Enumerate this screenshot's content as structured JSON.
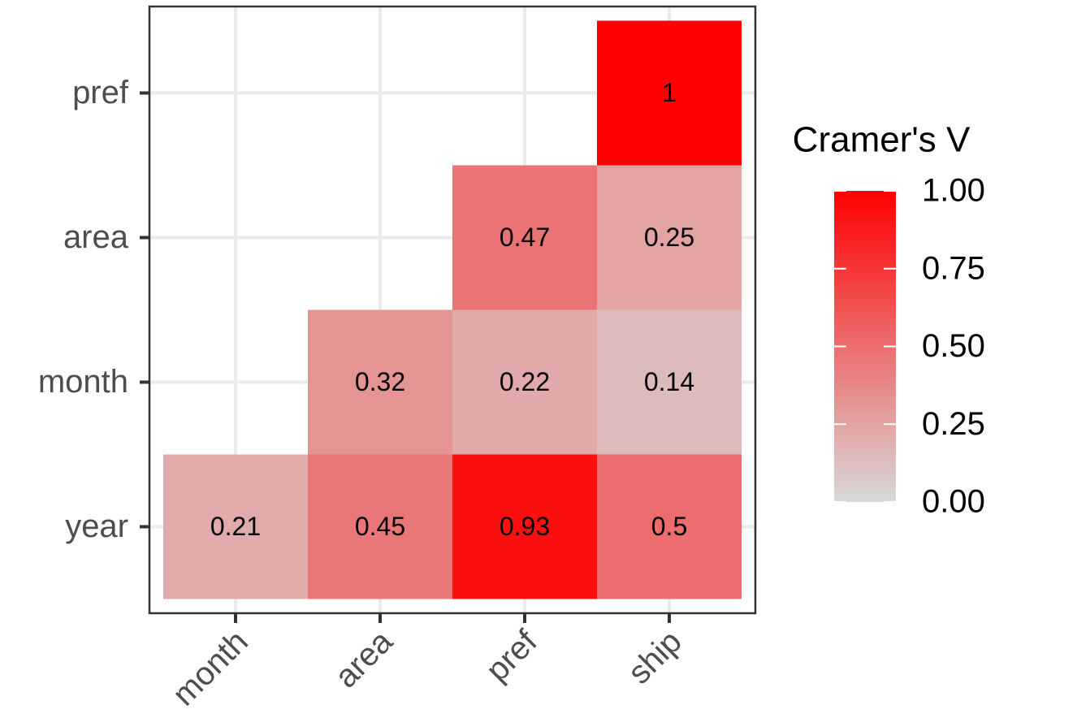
{
  "chart_data": {
    "type": "heatmap",
    "x_categories": [
      "month",
      "area",
      "pref",
      "ship"
    ],
    "y_categories": [
      "year",
      "month",
      "area",
      "pref"
    ],
    "values": [
      [
        0.21,
        0.45,
        0.93,
        0.5
      ],
      [
        null,
        0.32,
        0.22,
        0.14
      ],
      [
        null,
        null,
        0.47,
        0.25
      ],
      [
        null,
        null,
        null,
        1
      ]
    ],
    "legend_title": "Cramer's V",
    "clim": [
      0,
      1
    ],
    "cticks": [
      {
        "value": 0,
        "label": "0.00"
      },
      {
        "value": 0.25,
        "label": "0.25"
      },
      {
        "value": 0.5,
        "label": "0.50"
      },
      {
        "value": 0.75,
        "label": "0.75"
      },
      {
        "value": 1,
        "label": "1.00"
      }
    ],
    "low_color": "#d9d9d9",
    "high_color": "#ff0000",
    "grid": true,
    "legend": "right"
  }
}
